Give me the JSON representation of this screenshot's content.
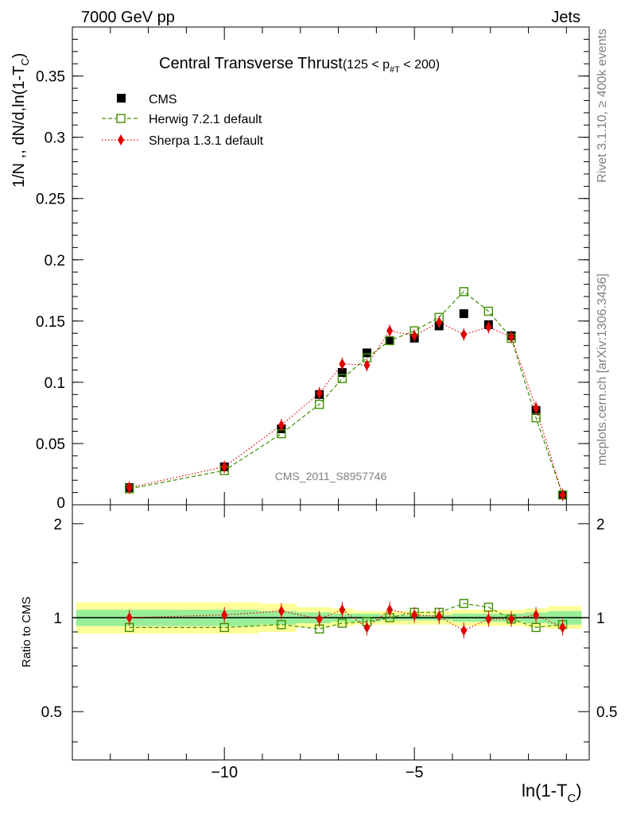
{
  "header": {
    "left": "7000 GeV pp",
    "right": "Jets"
  },
  "side_text": {
    "rivet": "Rivet 3.1.10, ≥ 400k events",
    "mcplots": "mcplots.cern.ch [arXiv:1306.3436]"
  },
  "watermark": "CMS_2011_S8957746",
  "chart_data": [
    {
      "type": "line",
      "title_main": "Central Transverse Thrust",
      "title_cond": "(125 < p",
      "title_sub": "#T",
      "title_tail": " < 200)",
      "ylabel_main": "1/N ,, dN/d,ln(1-T",
      "ylabel_sub": "C",
      "ylabel_tail": ")",
      "xlabel_main": "ln(1-T",
      "xlabel_sub": "C",
      "xlabel_tail": ")",
      "xlim": [
        -14.0,
        -0.4
      ],
      "ylim": [
        0,
        0.39
      ],
      "yticks": [
        0.05,
        0.1,
        0.15,
        0.2,
        0.25,
        0.3,
        0.35
      ],
      "ytick_labels": [
        "0.05",
        "0.1",
        "0.15",
        "0.2",
        "0.25",
        "0.3",
        "0.35"
      ],
      "y_zero_label": "0",
      "legend_position": "top-left",
      "x": [
        -12.5,
        -10.0,
        -8.5,
        -7.5,
        -6.9,
        -6.25,
        -5.65,
        -5.0,
        -4.35,
        -3.7,
        -3.05,
        -2.45,
        -1.8,
        -1.1
      ],
      "series": [
        {
          "name": "CMS",
          "color": "#000000",
          "marker": "square-filled",
          "values": [
            0.014,
            0.031,
            0.062,
            0.09,
            0.108,
            0.124,
            0.134,
            0.136,
            0.146,
            0.156,
            0.147,
            0.138,
            0.077,
            0.008
          ]
        },
        {
          "name": "Herwig 7.2.1 default",
          "color": "#3f8f00",
          "marker": "square-open",
          "line": "dashed",
          "values": [
            0.013,
            0.028,
            0.058,
            0.082,
            0.103,
            0.12,
            0.134,
            0.142,
            0.153,
            0.174,
            0.158,
            0.136,
            0.071,
            0.008
          ]
        },
        {
          "name": "Sherpa 1.3.1 default",
          "color": "#e00000",
          "marker": "diamond-filled",
          "line": "dotted",
          "values": [
            0.014,
            0.031,
            0.065,
            0.091,
            0.115,
            0.114,
            0.142,
            0.138,
            0.149,
            0.139,
            0.145,
            0.137,
            0.079,
            0.008
          ]
        }
      ]
    },
    {
      "type": "line",
      "ylabel": "Ratio to CMS",
      "xlim": [
        -14.0,
        -0.4
      ],
      "ylim": [
        0.35,
        2.3
      ],
      "log_y": true,
      "yticks": [
        0.5,
        1,
        2
      ],
      "ytick_labels": [
        "0.5",
        "1",
        "2"
      ],
      "xticks": [
        -10,
        -5
      ],
      "xtick_labels": [
        "−10",
        "−5"
      ],
      "x": [
        -12.5,
        -10.0,
        -8.5,
        -7.5,
        -6.9,
        -6.25,
        -5.65,
        -5.0,
        -4.35,
        -3.7,
        -3.05,
        -2.45,
        -1.8,
        -1.1
      ],
      "bands": {
        "edges": [
          -13.9,
          -9.1,
          -8.1,
          -7.2,
          -6.6,
          -5.9,
          -5.3,
          -4.7,
          -4.0,
          -3.4,
          -2.8,
          -2.1,
          -1.5,
          -0.6
        ],
        "yellow_lo": [
          0.89,
          0.9,
          0.93,
          0.94,
          0.95,
          0.95,
          0.95,
          0.95,
          0.94,
          0.94,
          0.94,
          0.93,
          0.92
        ],
        "yellow_hi": [
          1.12,
          1.11,
          1.08,
          1.07,
          1.05,
          1.05,
          1.05,
          1.05,
          1.06,
          1.06,
          1.06,
          1.07,
          1.09
        ],
        "green_lo": [
          0.94,
          0.95,
          0.96,
          0.97,
          0.97,
          0.98,
          0.98,
          0.98,
          0.97,
          0.97,
          0.97,
          0.96,
          0.95
        ],
        "green_hi": [
          1.06,
          1.05,
          1.04,
          1.03,
          1.03,
          1.02,
          1.02,
          1.02,
          1.03,
          1.03,
          1.03,
          1.04,
          1.05
        ]
      },
      "series": [
        {
          "name": "Herwig 7.2.1 default",
          "color": "#3f8f00",
          "values": [
            0.93,
            0.93,
            0.95,
            0.92,
            0.96,
            0.97,
            1.0,
            1.04,
            1.04,
            1.11,
            1.08,
            0.99,
            0.93,
            0.95
          ]
        },
        {
          "name": "Sherpa 1.3.1 default",
          "color": "#e00000",
          "values": [
            1.0,
            1.02,
            1.05,
            0.99,
            1.06,
            0.93,
            1.06,
            1.02,
            1.01,
            0.91,
            0.99,
            0.99,
            1.02,
            0.93
          ]
        }
      ]
    }
  ]
}
